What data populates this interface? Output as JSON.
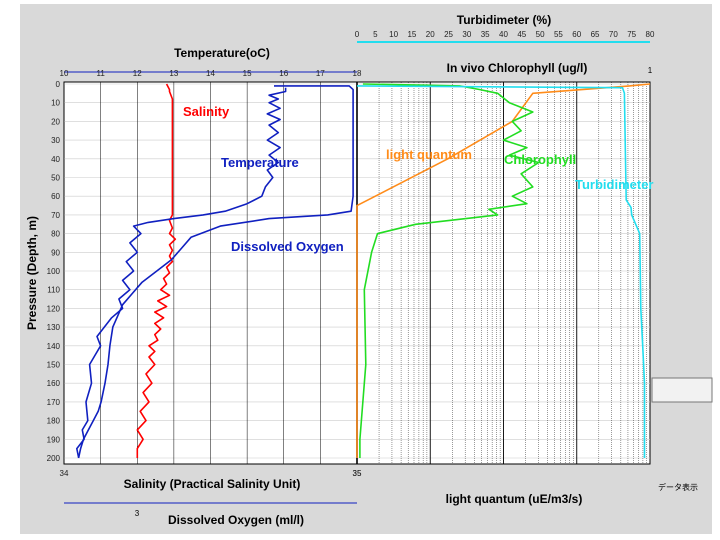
{
  "labels": {
    "turbidimeter_title": "Turbidimeter (%)",
    "temperature_title": "Temperature(oC)",
    "chlorophyll_title": "In vivo Chlorophyll (ug/l)",
    "chlorophyll_axis_max": "1",
    "y_axis_title": "Pressure (Depth, m)",
    "salinity_axis_title": "Salinity (Practical Salinity Unit)",
    "oxygen_axis_title": "Dissolved Oxygen (ml/l)",
    "oxygen_axis_min": "3",
    "light_axis_title": "light quantum (uE/m3/s)",
    "salinity_tick_min": "34",
    "salinity_tick_max": "35",
    "light_tick_min": "35",
    "bottom_right_tag": "データ表示"
  },
  "colors": {
    "salinity": "#ff0000",
    "temperature": "#1020c0",
    "dissolved_oxygen": "#1020c0",
    "light_quantum": "#ff8c1a",
    "chlorophyll": "#22dd22",
    "turbidity": "#22ddee",
    "grid": "#000000",
    "panel": "#d9d9d9"
  },
  "chart_data": {
    "type": "line",
    "y_axis": {
      "label": "Pressure (Depth, m)",
      "range": [
        0,
        200
      ],
      "inverted": true,
      "ticks": [
        "0",
        "10",
        "20",
        "30",
        "40",
        "50",
        "60",
        "70",
        "80",
        "90",
        "100",
        "110",
        "120",
        "130",
        "140",
        "150",
        "160",
        "170",
        "180",
        "190",
        "200"
      ]
    },
    "x_axes": {
      "temperature": {
        "label": "Temperature(oC)",
        "range": [
          10,
          18
        ],
        "ticks": [
          "10",
          "11",
          "12",
          "13",
          "14",
          "15",
          "16",
          "17",
          "18"
        ]
      },
      "turbidity": {
        "label": "Turbidimeter (%)",
        "range": [
          0,
          80
        ],
        "ticks": [
          "0",
          "5",
          "10",
          "15",
          "20",
          "25",
          "30",
          "35",
          "40",
          "45",
          "50",
          "55",
          "60",
          "65",
          "70",
          "75",
          "80"
        ]
      },
      "chlorophyll": {
        "label": "In vivo Chlorophyll (ug/l)",
        "range": [
          0,
          1
        ]
      },
      "salinity": {
        "label": "Salinity (Practical Salinity Unit)",
        "range": [
          34,
          35
        ]
      },
      "dissolved_oxygen": {
        "label": "Dissolved Oxygen (ml/l)",
        "range": [
          3,
          6
        ]
      },
      "light_quantum": {
        "label": "light quantum (uE/m3/s)",
        "scale": "log"
      }
    },
    "series": [
      {
        "name": "Salinity",
        "axis": "salinity",
        "color": "#ff0000",
        "points": [
          [
            34.35,
            0
          ],
          [
            34.36,
            3
          ],
          [
            34.36,
            4
          ],
          [
            34.37,
            8
          ],
          [
            34.37,
            12
          ],
          [
            34.37,
            16
          ],
          [
            34.37,
            20
          ],
          [
            34.37,
            30
          ],
          [
            34.37,
            40
          ],
          [
            34.37,
            50
          ],
          [
            34.37,
            60
          ],
          [
            34.37,
            65
          ],
          [
            34.37,
            70
          ],
          [
            34.36,
            73
          ],
          [
            34.37,
            77
          ],
          [
            34.36,
            80
          ],
          [
            34.38,
            83
          ],
          [
            34.36,
            86
          ],
          [
            34.37,
            89
          ],
          [
            34.36,
            92
          ],
          [
            34.37,
            95
          ],
          [
            34.35,
            98
          ],
          [
            34.36,
            101
          ],
          [
            34.34,
            104
          ],
          [
            34.35,
            107
          ],
          [
            34.33,
            110
          ],
          [
            34.36,
            113
          ],
          [
            34.32,
            116
          ],
          [
            34.35,
            119
          ],
          [
            34.31,
            122
          ],
          [
            34.34,
            125
          ],
          [
            34.31,
            128
          ],
          [
            34.33,
            131
          ],
          [
            34.31,
            134
          ],
          [
            34.32,
            137
          ],
          [
            34.29,
            140
          ],
          [
            34.31,
            143
          ],
          [
            34.29,
            146
          ],
          [
            34.31,
            150
          ],
          [
            34.28,
            155
          ],
          [
            34.3,
            160
          ],
          [
            34.27,
            165
          ],
          [
            34.29,
            170
          ],
          [
            34.26,
            175
          ],
          [
            34.28,
            180
          ],
          [
            34.25,
            185
          ],
          [
            34.27,
            190
          ],
          [
            34.25,
            195
          ],
          [
            34.25,
            200
          ]
        ]
      },
      {
        "name": "Temperature",
        "axis": "temperature",
        "color": "#1020c0",
        "points": [
          [
            16.05,
            2
          ],
          [
            16.05,
            4
          ],
          [
            15.6,
            6
          ],
          [
            15.85,
            8
          ],
          [
            15.6,
            10
          ],
          [
            15.9,
            13
          ],
          [
            15.55,
            16
          ],
          [
            15.9,
            19
          ],
          [
            15.6,
            22
          ],
          [
            15.85,
            26
          ],
          [
            15.55,
            30
          ],
          [
            15.9,
            34
          ],
          [
            15.6,
            38
          ],
          [
            15.85,
            42
          ],
          [
            15.55,
            46
          ],
          [
            15.7,
            50
          ],
          [
            15.5,
            55
          ],
          [
            15.4,
            60
          ],
          [
            15.0,
            64
          ],
          [
            14.4,
            68
          ],
          [
            13.8,
            70
          ],
          [
            13.0,
            72
          ],
          [
            12.3,
            74
          ],
          [
            11.9,
            76
          ],
          [
            12.1,
            80
          ],
          [
            11.8,
            85
          ],
          [
            12.0,
            90
          ],
          [
            11.7,
            95
          ],
          [
            11.9,
            100
          ],
          [
            11.6,
            105
          ],
          [
            11.8,
            110
          ],
          [
            11.5,
            115
          ],
          [
            11.6,
            120
          ],
          [
            11.3,
            125
          ],
          [
            11.1,
            130
          ],
          [
            10.9,
            135
          ],
          [
            11.0,
            140
          ],
          [
            10.85,
            145
          ],
          [
            10.7,
            150
          ],
          [
            10.75,
            160
          ],
          [
            10.6,
            170
          ],
          [
            10.65,
            180
          ],
          [
            10.5,
            185
          ],
          [
            10.55,
            190
          ],
          [
            10.35,
            195
          ],
          [
            10.4,
            200
          ]
        ]
      },
      {
        "name": "Dissolved Oxygen",
        "axis": "dissolved_oxygen",
        "color": "#1020c0",
        "points": [
          [
            5.15,
            1
          ],
          [
            5.92,
            1
          ],
          [
            5.96,
            3
          ],
          [
            5.96,
            20
          ],
          [
            5.96,
            40
          ],
          [
            5.96,
            60
          ],
          [
            5.94,
            68
          ],
          [
            5.7,
            70
          ],
          [
            5.1,
            72
          ],
          [
            4.6,
            76
          ],
          [
            4.3,
            82
          ],
          [
            4.2,
            88
          ],
          [
            4.1,
            94
          ],
          [
            3.95,
            100
          ],
          [
            3.8,
            106
          ],
          [
            3.7,
            112
          ],
          [
            3.6,
            118
          ],
          [
            3.55,
            124
          ],
          [
            3.5,
            130
          ],
          [
            3.47,
            140
          ],
          [
            3.45,
            150
          ],
          [
            3.42,
            160
          ],
          [
            3.38,
            170
          ],
          [
            3.35,
            175
          ],
          [
            3.3,
            180
          ],
          [
            3.25,
            185
          ],
          [
            3.2,
            190
          ],
          [
            3.17,
            195
          ],
          [
            3.15,
            200
          ]
        ]
      },
      {
        "name": "light quantum",
        "axis": "light_quantum",
        "color": "#ff8c1a",
        "points": [
          [
            0.0,
            200
          ],
          [
            0.0,
            65
          ],
          [
            0.31,
            40
          ],
          [
            0.53,
            20
          ],
          [
            0.6,
            5
          ],
          [
            0.93,
            1
          ],
          [
            1.0,
            0
          ]
        ]
      },
      {
        "name": "Chlorophyll",
        "axis": "chlorophyll",
        "color": "#22dd22",
        "points": [
          [
            0.01,
            200
          ],
          [
            0.01,
            190
          ],
          [
            0.03,
            150
          ],
          [
            0.025,
            110
          ],
          [
            0.05,
            90
          ],
          [
            0.07,
            80
          ],
          [
            0.2,
            75
          ],
          [
            0.48,
            70
          ],
          [
            0.45,
            67
          ],
          [
            0.58,
            64
          ],
          [
            0.53,
            60
          ],
          [
            0.6,
            55
          ],
          [
            0.56,
            48
          ],
          [
            0.62,
            42
          ],
          [
            0.52,
            38
          ],
          [
            0.58,
            34
          ],
          [
            0.5,
            30
          ],
          [
            0.56,
            25
          ],
          [
            0.53,
            20
          ],
          [
            0.6,
            15
          ],
          [
            0.52,
            10
          ],
          [
            0.48,
            5
          ],
          [
            0.42,
            3
          ],
          [
            0.35,
            1
          ],
          [
            0.02,
            0
          ]
        ]
      },
      {
        "name": "Turbidimeter",
        "axis": "turbidity",
        "color": "#22ddee",
        "points": [
          [
            78.5,
            200
          ],
          [
            78.5,
            160
          ],
          [
            78.0,
            140
          ],
          [
            77.5,
            120
          ],
          [
            77.2,
            80
          ],
          [
            75.0,
            70
          ],
          [
            74.8,
            66
          ],
          [
            73.5,
            62
          ],
          [
            73.3,
            40
          ],
          [
            73.0,
            5
          ],
          [
            72.5,
            2
          ],
          [
            0.0,
            1
          ]
        ]
      }
    ],
    "annotations": [
      {
        "text": "Salinity",
        "color": "#ff0000"
      },
      {
        "text": "Temperature",
        "color": "#1020c0"
      },
      {
        "text": "Dissolved Oxygen",
        "color": "#1020c0"
      },
      {
        "text": "light quantum",
        "color": "#ff8c1a"
      },
      {
        "text": "Chlorophyll",
        "color": "#22dd22"
      },
      {
        "text": "Turbidimeter",
        "color": "#22ddee"
      }
    ],
    "grid": true,
    "legend": "none"
  }
}
